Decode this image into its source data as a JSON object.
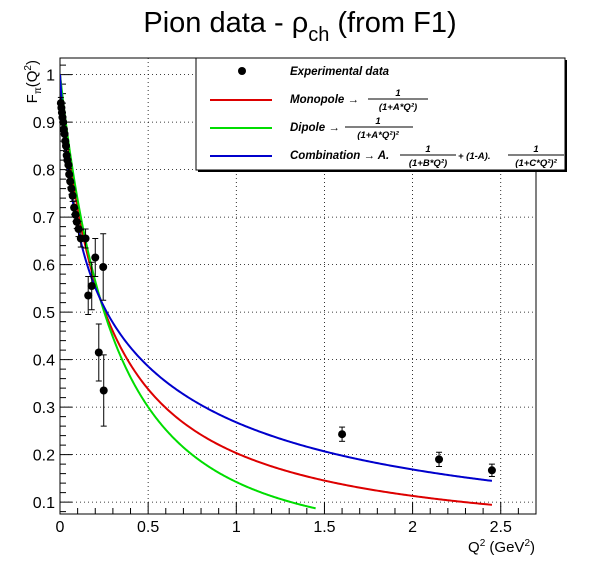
{
  "chart_data": {
    "type": "scatter",
    "title": {
      "main": "Pion data - ρ",
      "sub": "ch",
      "tail": " (from F1)"
    },
    "xlabel": {
      "base": "Q",
      "sup": "2",
      "mid": " (GeV",
      "sup2": "2",
      "end": ")"
    },
    "ylabel": {
      "base": "F",
      "sub": "π",
      "mid": "(Q",
      "sup": "2",
      "end": ")"
    },
    "xlim": [
      0,
      2.7
    ],
    "ylim": [
      0.075,
      1.035
    ],
    "xticks": [
      0,
      0.5,
      1,
      1.5,
      2,
      2.5
    ],
    "xtick_labels": [
      "0",
      "0.5",
      "1",
      "1.5",
      "2",
      "2.5"
    ],
    "yticks": [
      0.1,
      0.2,
      0.3,
      0.4,
      0.5,
      0.6,
      0.7,
      0.8,
      0.9,
      1
    ],
    "ytick_labels": [
      "0.1",
      "0.2",
      "0.3",
      "0.4",
      "0.5",
      "0.6",
      "0.7",
      "0.8",
      "0.9",
      "1"
    ],
    "grid": true,
    "legend_position": "top-right",
    "legend": [
      {
        "key": "data",
        "label": "Experimental data"
      },
      {
        "key": "mono",
        "label": "Monopole",
        "formula_num": "1",
        "formula_den": "(1+A*Q²)"
      },
      {
        "key": "dip",
        "label": "Dipole",
        "formula_num": "1",
        "formula_den": "(1+A*Q²)²"
      },
      {
        "key": "comb",
        "label": "Combination",
        "formula_a": "A.",
        "formula_num": "1",
        "formula_den1": "(1+B*Q²)",
        "formula_mid": " + (1-A).",
        "formula_den2": "(1+C*Q²)²"
      }
    ],
    "experimental_data": [
      {
        "x": 0.005,
        "y": 0.94,
        "err": 0.012
      },
      {
        "x": 0.008,
        "y": 0.93,
        "err": 0.012
      },
      {
        "x": 0.011,
        "y": 0.92,
        "err": 0.012
      },
      {
        "x": 0.014,
        "y": 0.91,
        "err": 0.012
      },
      {
        "x": 0.018,
        "y": 0.9,
        "err": 0.012
      },
      {
        "x": 0.022,
        "y": 0.885,
        "err": 0.012
      },
      {
        "x": 0.026,
        "y": 0.875,
        "err": 0.012
      },
      {
        "x": 0.03,
        "y": 0.86,
        "err": 0.012
      },
      {
        "x": 0.034,
        "y": 0.85,
        "err": 0.012
      },
      {
        "x": 0.038,
        "y": 0.83,
        "err": 0.012
      },
      {
        "x": 0.042,
        "y": 0.82,
        "err": 0.012
      },
      {
        "x": 0.048,
        "y": 0.81,
        "err": 0.012
      },
      {
        "x": 0.052,
        "y": 0.79,
        "err": 0.012
      },
      {
        "x": 0.058,
        "y": 0.775,
        "err": 0.012
      },
      {
        "x": 0.065,
        "y": 0.76,
        "err": 0.012
      },
      {
        "x": 0.072,
        "y": 0.745,
        "err": 0.012
      },
      {
        "x": 0.08,
        "y": 0.72,
        "err": 0.014
      },
      {
        "x": 0.088,
        "y": 0.705,
        "err": 0.014
      },
      {
        "x": 0.095,
        "y": 0.69,
        "err": 0.014
      },
      {
        "x": 0.105,
        "y": 0.675,
        "err": 0.016
      },
      {
        "x": 0.118,
        "y": 0.655,
        "err": 0.018
      },
      {
        "x": 0.145,
        "y": 0.655,
        "err": 0.02
      },
      {
        "x": 0.16,
        "y": 0.535,
        "err": 0.04
      },
      {
        "x": 0.18,
        "y": 0.555,
        "err": 0.05
      },
      {
        "x": 0.2,
        "y": 0.615,
        "err": 0.04
      },
      {
        "x": 0.22,
        "y": 0.415,
        "err": 0.06
      },
      {
        "x": 0.245,
        "y": 0.595,
        "err": 0.07
      },
      {
        "x": 0.248,
        "y": 0.335,
        "err": 0.075
      },
      {
        "x": 1.6,
        "y": 0.243,
        "err": 0.015
      },
      {
        "x": 2.15,
        "y": 0.19,
        "err": 0.015
      },
      {
        "x": 2.45,
        "y": 0.167,
        "err": 0.013
      }
    ],
    "series": [
      {
        "key": "mono",
        "color": "#dd0000",
        "x_start": 0,
        "x_end": 2.45,
        "params": {
          "A": 3.92
        }
      },
      {
        "key": "dip",
        "color": "#00dd00",
        "x_start": 0,
        "x_end": 1.45,
        "params": {
          "A": 1.65
        }
      },
      {
        "key": "comb",
        "color": "#0000cc",
        "x_start": 0,
        "x_end": 2.45,
        "params": {
          "A": 0.6,
          "B": 1.3,
          "C": 6.5
        }
      }
    ]
  }
}
